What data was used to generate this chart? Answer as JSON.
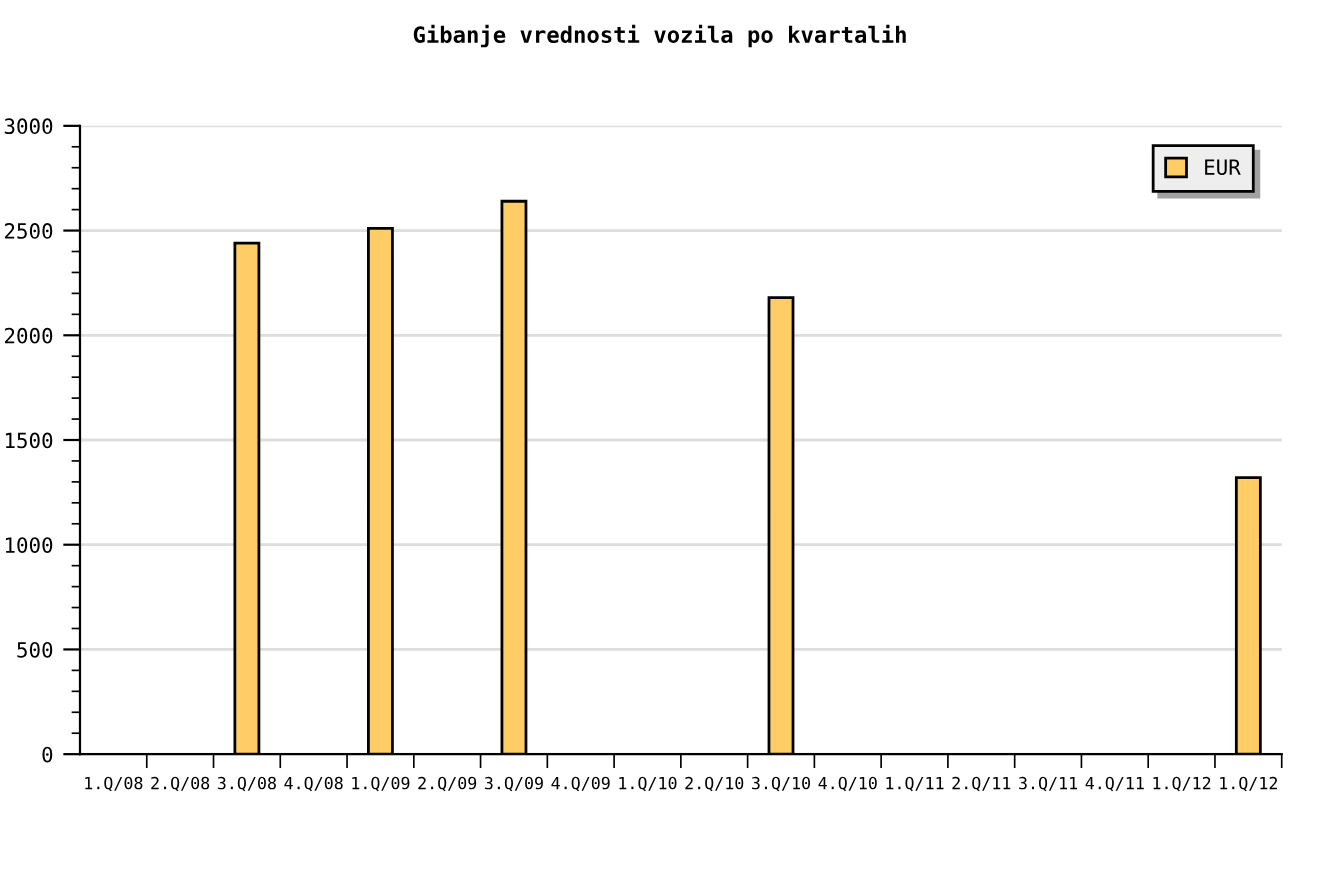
{
  "chart_data": {
    "type": "bar",
    "title": "Gibanje vrednosti vozila po kvartalih",
    "categories": [
      "1.Q/08",
      "2.Q/08",
      "3.Q/08",
      "4.Q/08",
      "1.Q/09",
      "2.Q/09",
      "3.Q/09",
      "4.Q/09",
      "1.Q/10",
      "2.Q/10",
      "3.Q/10",
      "4.Q/10",
      "1.Q/11",
      "2.Q/11",
      "3.Q/11",
      "4.Q/11",
      "1.Q/12",
      "1.Q/12"
    ],
    "series": [
      {
        "name": "EUR",
        "color": "#ffcc66",
        "values": [
          null,
          null,
          2440,
          null,
          2510,
          null,
          2640,
          null,
          null,
          null,
          2180,
          null,
          null,
          null,
          null,
          null,
          null,
          1320
        ]
      }
    ],
    "ylim": [
      0,
      3000
    ],
    "yticks": [
      0,
      500,
      1000,
      1500,
      2000,
      2500,
      3000
    ],
    "grid": "y",
    "legend": "top right"
  }
}
